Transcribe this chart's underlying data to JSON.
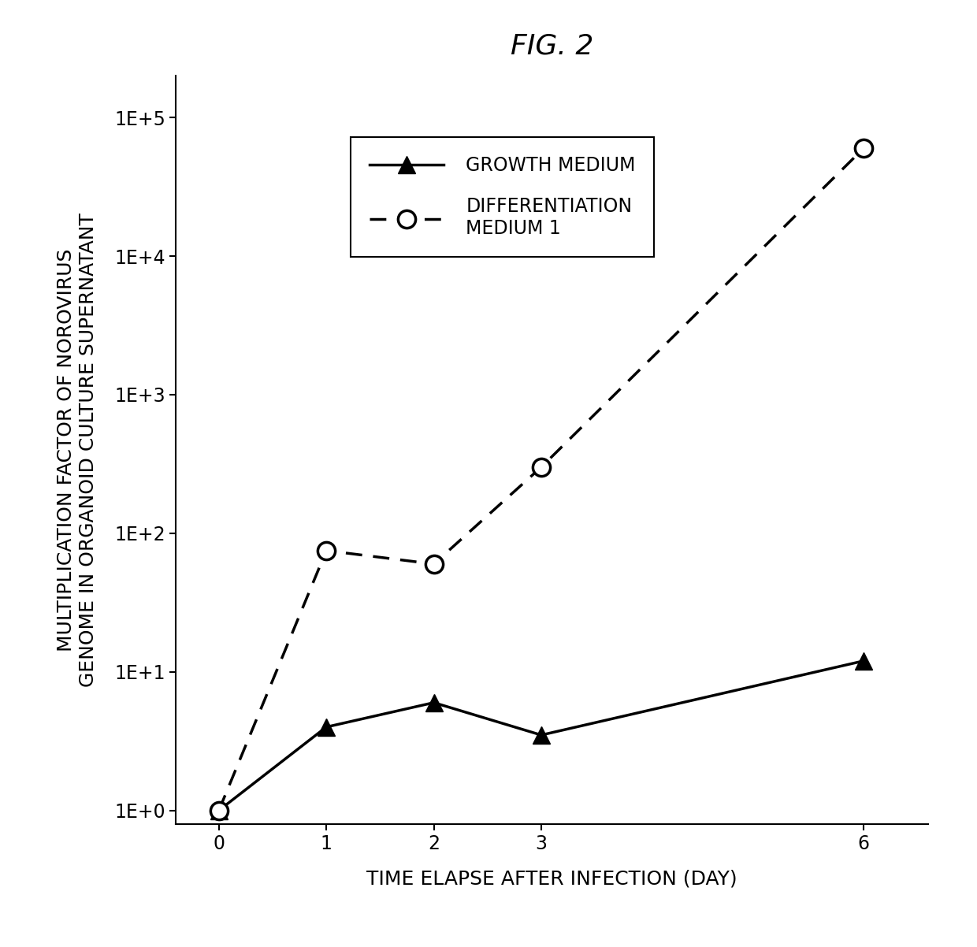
{
  "title": "FIG. 2",
  "xlabel": "TIME ELAPSE AFTER INFECTION (DAY)",
  "ylabel_line1": "MULTIPLICATION FACTOR OF NOROVIRUS",
  "ylabel_line2": "GENOME IN ORGANOID CULTURE SUPERNATANT",
  "x": [
    0,
    1,
    2,
    3,
    6
  ],
  "growth_medium": [
    1.0,
    4.0,
    6.0,
    3.5,
    12.0
  ],
  "diff_medium": [
    1.0,
    75.0,
    60.0,
    300.0,
    60000.0
  ],
  "growth_label": "GROWTH MEDIUM",
  "diff_label": "DIFFERENTIATION\nMEDIUM 1",
  "ylim_min": 0.8,
  "ylim_max": 200000.0,
  "ytick_labels": [
    "1E+0",
    "1E+1",
    "1E+2",
    "1E+3",
    "1E+4",
    "1E+5"
  ],
  "ytick_values": [
    1.0,
    10.0,
    100.0,
    1000.0,
    10000.0,
    100000.0
  ],
  "background_color": "#ffffff",
  "line_color": "#000000",
  "title_fontsize": 26,
  "label_fontsize": 18,
  "tick_fontsize": 17,
  "legend_fontsize": 17
}
